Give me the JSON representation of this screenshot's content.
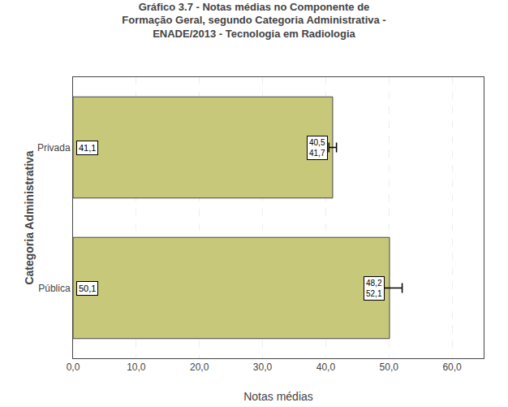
{
  "chart_data": {
    "type": "bar",
    "orientation": "horizontal",
    "title": "Gráfico 3.7 - Notas médias no Componente de\nFormação Geral, segundo Categoria Administrativa -\nENADE/2013 - Tecnologia em Radiologia",
    "xlabel": "Notas médias",
    "ylabel": "Categoria Administrativa",
    "categories": [
      "Pública",
      "Privada"
    ],
    "values": [
      50.1,
      41.1
    ],
    "value_labels": [
      "50,1",
      "41,1"
    ],
    "data_labels": true,
    "error_low": [
      48.2,
      40.5
    ],
    "error_high": [
      52.1,
      41.7
    ],
    "error_low_labels": [
      "48,2",
      "40,5"
    ],
    "error_high_labels": [
      "52,1",
      "41,7"
    ],
    "color": "#c8c87a",
    "xlim": [
      0,
      65
    ],
    "xticks": [
      {
        "value": 0,
        "label": "0,0"
      },
      {
        "value": 10,
        "label": "10,0"
      },
      {
        "value": 20,
        "label": "20,0"
      },
      {
        "value": 30,
        "label": "30,0"
      },
      {
        "value": 40,
        "label": "40,0"
      },
      {
        "value": 50,
        "label": "50,0"
      },
      {
        "value": 60,
        "label": "60,0"
      }
    ],
    "grid": true
  }
}
